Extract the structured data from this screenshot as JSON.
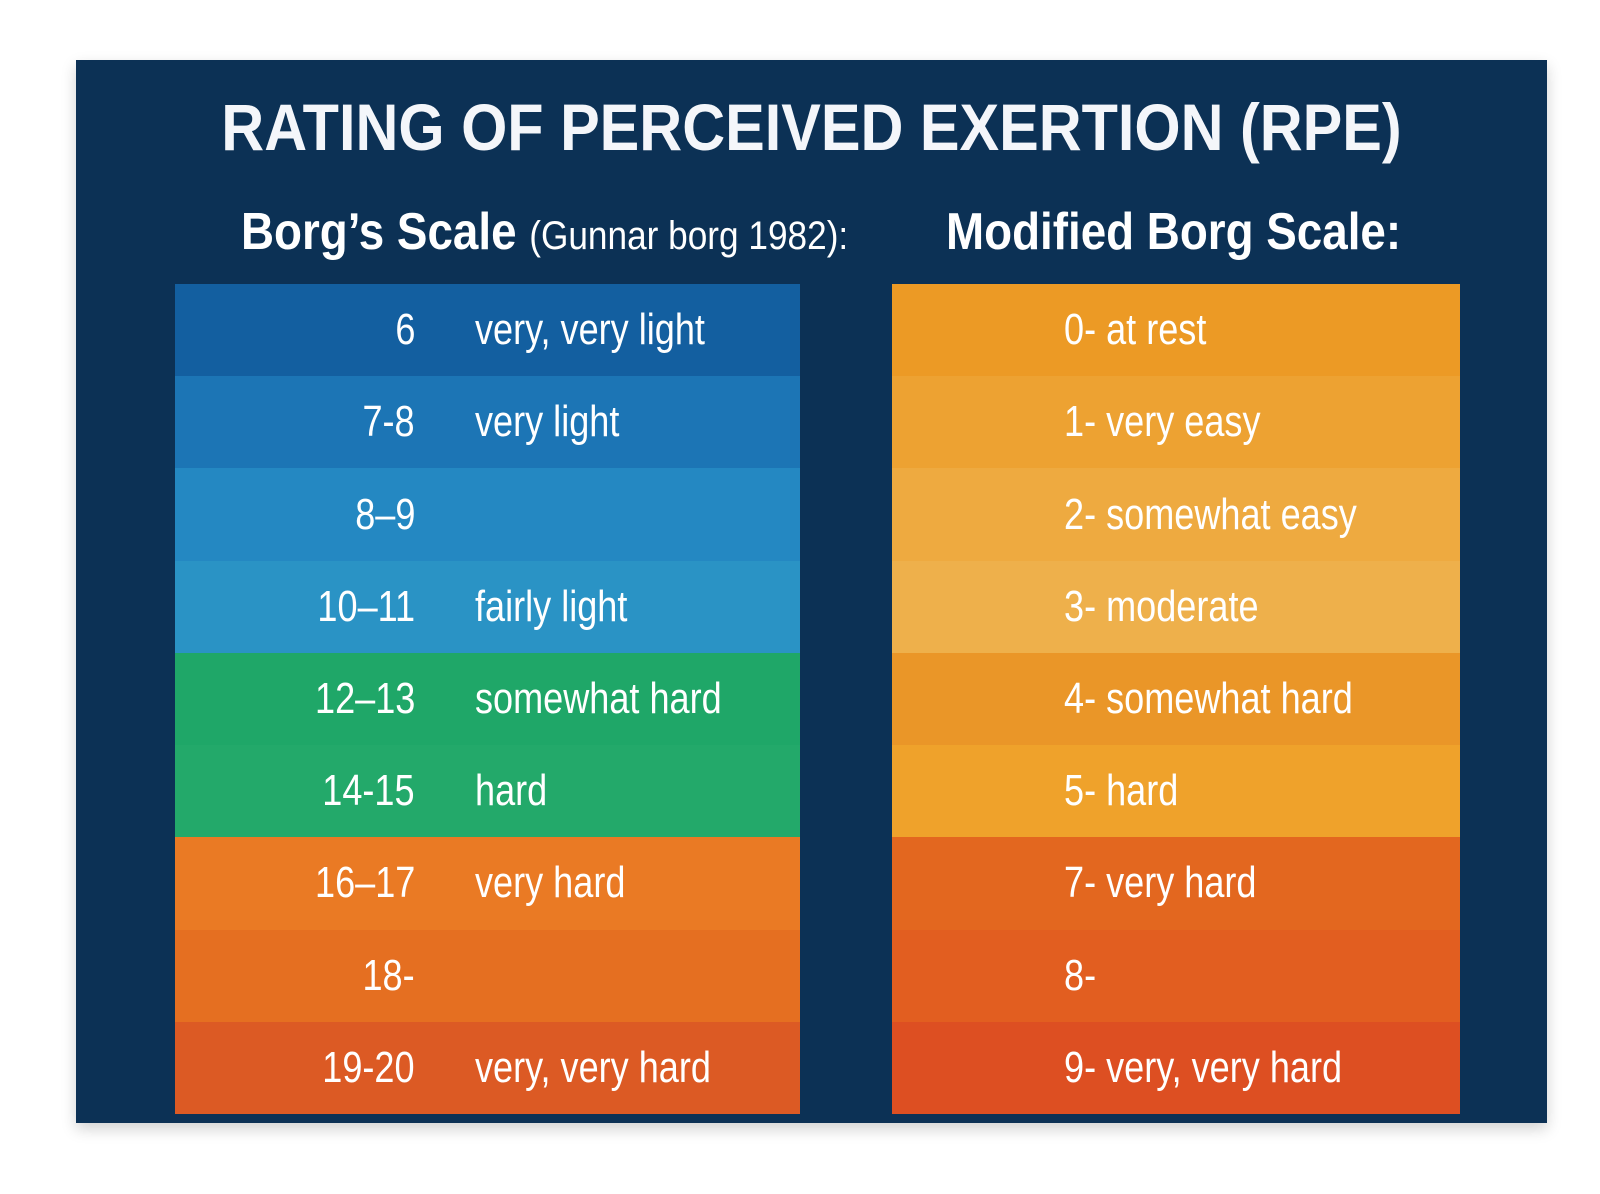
{
  "title": "RATING OF PERCEIVED EXERTION (RPE)",
  "colors": {
    "background": "#0c3155"
  },
  "borg": {
    "heading": "Borg’s Scale",
    "subheading": "(Gunnar borg 1982):",
    "rows": [
      {
        "value": "6",
        "label": "very, very light",
        "color": "#135fa0"
      },
      {
        "value": "7-8",
        "label": "very light",
        "color": "#1c75b5"
      },
      {
        "value": "8–9",
        "label": "",
        "color": "#2488c2"
      },
      {
        "value": "10–11",
        "label": "fairly light",
        "color": "#2a93c5"
      },
      {
        "value": "12–13",
        "label": "somewhat hard",
        "color": "#1fa768"
      },
      {
        "value": "14-15",
        "label": "hard",
        "color": "#23a96a"
      },
      {
        "value": "16–17",
        "label": "very hard",
        "color": "#ea7a24"
      },
      {
        "value": "18-",
        "label": "",
        "color": "#e56f21"
      },
      {
        "value": "19-20",
        "label": "very, very hard",
        "color": "#dc5a24"
      }
    ]
  },
  "modified": {
    "heading": "Modified Borg Scale:",
    "rows": [
      {
        "label": "0- at rest",
        "color": "#ec9a25"
      },
      {
        "label": "1- very easy",
        "color": "#eda232"
      },
      {
        "label": "2- somewhat easy",
        "color": "#eeaa40"
      },
      {
        "label": "3- moderate",
        "color": "#eeb04b"
      },
      {
        "label": "4- somewhat hard",
        "color": "#ea9628"
      },
      {
        "label": "5- hard",
        "color": "#efa22b"
      },
      {
        "label": "7- very hard",
        "color": "#e3671f"
      },
      {
        "label": "8-",
        "color": "#e25e20"
      },
      {
        "label": "9- very, very hard",
        "color": "#dd4f22"
      }
    ]
  }
}
